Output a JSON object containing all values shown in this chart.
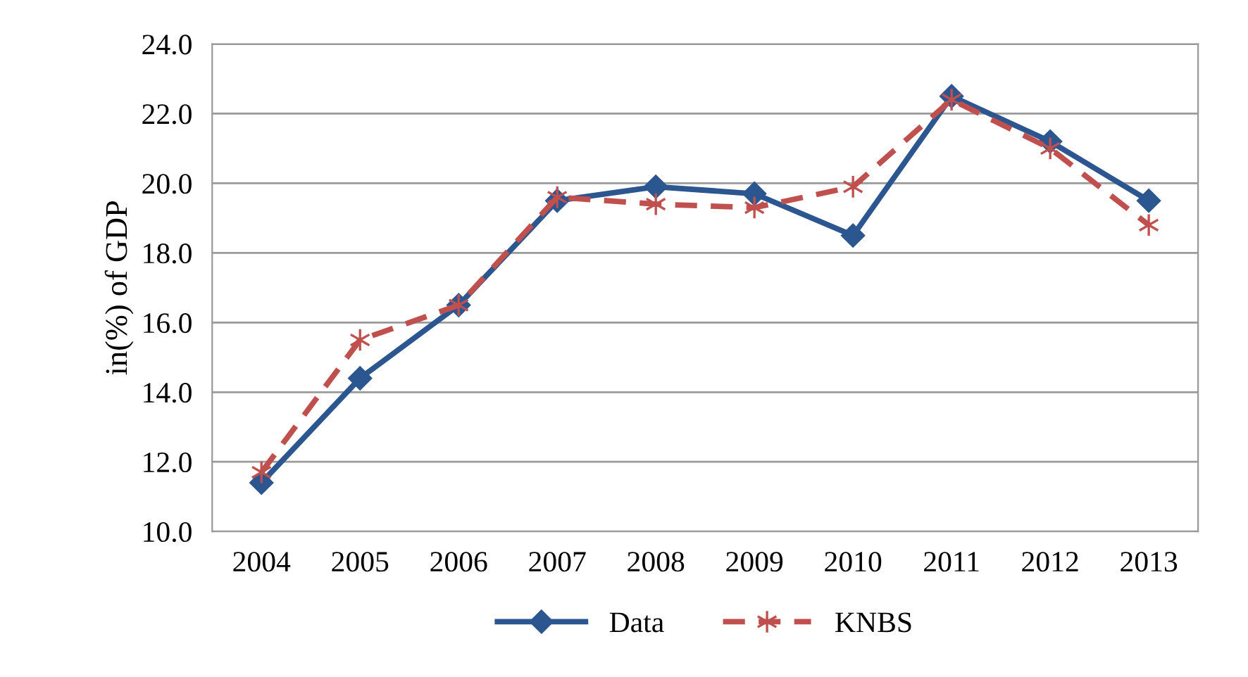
{
  "chart_data": {
    "type": "line",
    "ylabel": "in(%) of GDP",
    "categories": [
      "2004",
      "2005",
      "2006",
      "2007",
      "2008",
      "2009",
      "2010",
      "2011",
      "2012",
      "2013"
    ],
    "series": [
      {
        "name": "Data",
        "color": "#2b5690",
        "values": [
          11.4,
          14.4,
          16.5,
          19.5,
          19.9,
          19.7,
          18.5,
          22.5,
          21.2,
          19.5
        ],
        "marker": "diamond",
        "line_style": "solid"
      },
      {
        "name": "KNBS",
        "color": "#c0504d",
        "values": [
          11.7,
          15.5,
          16.5,
          19.6,
          19.4,
          19.3,
          19.9,
          22.4,
          21.0,
          18.8
        ],
        "marker": "cross",
        "line_style": "dashed"
      }
    ],
    "ylim": [
      10,
      24
    ],
    "yticks": [
      {
        "value": 10,
        "label": "10.0"
      },
      {
        "value": 12,
        "label": "12.0"
      },
      {
        "value": 14,
        "label": "14.0"
      },
      {
        "value": 16,
        "label": "16.0"
      },
      {
        "value": 18,
        "label": "18.0"
      },
      {
        "value": 20,
        "label": "20.0"
      },
      {
        "value": 22,
        "label": "22.0"
      },
      {
        "value": 24,
        "label": "24.0"
      }
    ],
    "grid": "y",
    "legend": "bottom"
  }
}
